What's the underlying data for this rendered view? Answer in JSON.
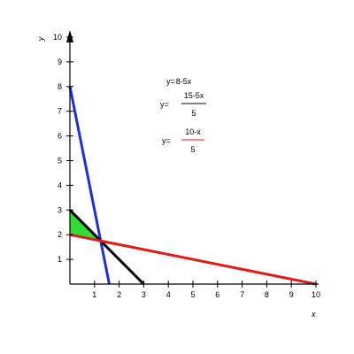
{
  "chart_data": {
    "type": "line",
    "xlabel": "x",
    "ylabel": "y",
    "xlim": [
      0,
      10
    ],
    "ylim": [
      0,
      10
    ],
    "x_ticks": [
      1,
      2,
      3,
      4,
      5,
      6,
      7,
      8,
      9,
      10
    ],
    "y_ticks": [
      1,
      2,
      3,
      4,
      5,
      6,
      7,
      8,
      9,
      10
    ],
    "grid": false,
    "series": [
      {
        "equation": {
          "lhs": "y=",
          "rhs": "8-5x"
        },
        "color": "#1f2ed6",
        "points": [
          [
            0,
            8
          ],
          [
            1.6,
            0
          ]
        ]
      },
      {
        "equation": {
          "lhs": "y=",
          "numerator": "15-5x",
          "denominator": "5"
        },
        "color": "#000000",
        "points": [
          [
            0,
            3
          ],
          [
            3,
            0
          ]
        ]
      },
      {
        "equation": {
          "lhs": "y=",
          "numerator": "10-x",
          "denominator": "5"
        },
        "color": "#e01b1b",
        "points": [
          [
            0,
            2
          ],
          [
            10,
            0
          ]
        ]
      }
    ],
    "shaded_region": {
      "color": "#33dd33",
      "vertices": [
        [
          0,
          3
        ],
        [
          1.25,
          1.75
        ],
        [
          0,
          2
        ]
      ]
    }
  }
}
